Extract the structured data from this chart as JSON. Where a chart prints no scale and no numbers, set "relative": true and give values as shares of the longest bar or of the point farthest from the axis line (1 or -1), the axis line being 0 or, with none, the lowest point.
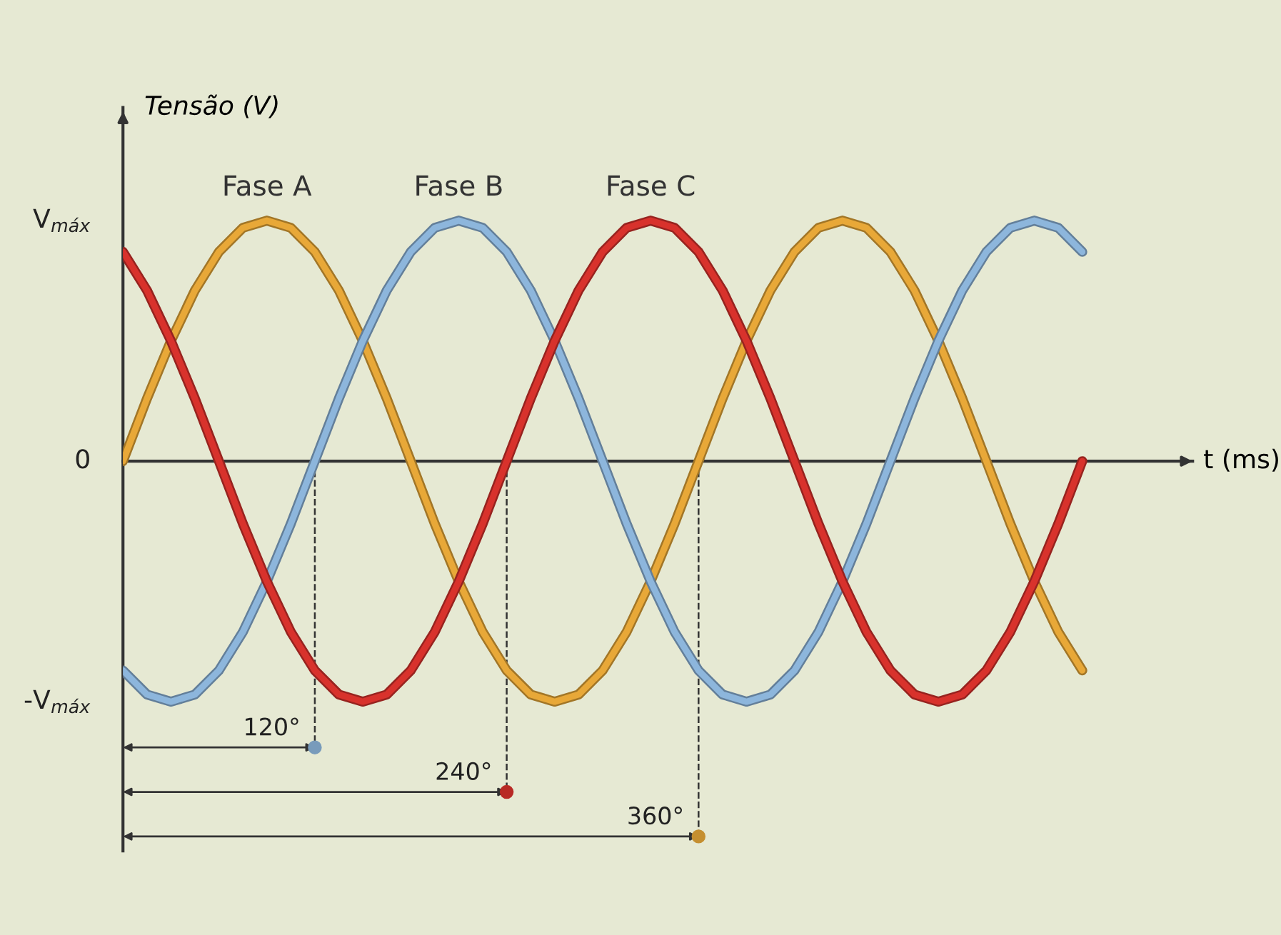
{
  "chart_data": {
    "type": "line",
    "xlabel": "t (ms)",
    "ylabel": "Tensão (V)",
    "categories": [
      null,
      null,
      null,
      null,
      null,
      null,
      null,
      null,
      null,
      null,
      null,
      null,
      null,
      null,
      null,
      null,
      null,
      null,
      null,
      null,
      null,
      null,
      null,
      null,
      null,
      null,
      null,
      null,
      null,
      null,
      null,
      null,
      null,
      null,
      null,
      null,
      null,
      null,
      null,
      null,
      null
    ],
    "series": [
      {
        "name": "Fase A",
        "color": "#e8a838",
        "values": [
          0,
          0.26,
          0.5,
          0.71,
          0.87,
          0.97,
          1,
          0.97,
          0.87,
          0.71,
          0.5,
          0.26,
          0,
          -0.26,
          -0.5,
          -0.71,
          -0.87,
          -0.97,
          -1,
          -0.97,
          -0.87,
          -0.71,
          -0.5,
          -0.26,
          0,
          0.26,
          0.5,
          0.71,
          0.87,
          0.97,
          1,
          0.97,
          0.87,
          0.71,
          0.5,
          0.26,
          0,
          -0.26,
          -0.5,
          -0.71,
          -0.87
        ]
      },
      {
        "name": "Fase B",
        "color": "#8db6dc",
        "values": [
          -0.87,
          -0.97,
          -1,
          -0.97,
          -0.87,
          -0.71,
          -0.5,
          -0.26,
          0,
          0.26,
          0.5,
          0.71,
          0.87,
          0.97,
          1,
          0.97,
          0.87,
          0.71,
          0.5,
          0.26,
          0,
          -0.26,
          -0.5,
          -0.71,
          -0.87,
          -0.97,
          -1,
          -0.97,
          -0.87,
          -0.71,
          -0.5,
          -0.26,
          0,
          0.26,
          0.5,
          0.71,
          0.87,
          0.97,
          1,
          0.97,
          0.87
        ]
      },
      {
        "name": "Fase C",
        "color": "#d8322c",
        "values": [
          0.87,
          0.71,
          0.5,
          0.26,
          0,
          -0.26,
          -0.5,
          -0.71,
          -0.87,
          -0.97,
          -1,
          -0.97,
          -0.87,
          -0.71,
          -0.5,
          -0.26,
          0,
          0.26,
          0.5,
          0.71,
          0.87,
          0.97,
          1,
          0.97,
          0.87,
          0.71,
          0.5,
          0.26,
          0,
          -0.26,
          -0.5,
          -0.71,
          -0.87,
          -0.97,
          -1,
          -0.97,
          -0.87,
          -0.71,
          -0.5,
          -0.26,
          0
        ]
      }
    ],
    "relative": true,
    "grid": false,
    "legend": false,
    "marker": "none",
    "line_style": "solid",
    "annotations": [
      "V$_{máx}$",
      "0",
      "-V$_{máx}$",
      "120°",
      "240°",
      "360°"
    ]
  }
}
